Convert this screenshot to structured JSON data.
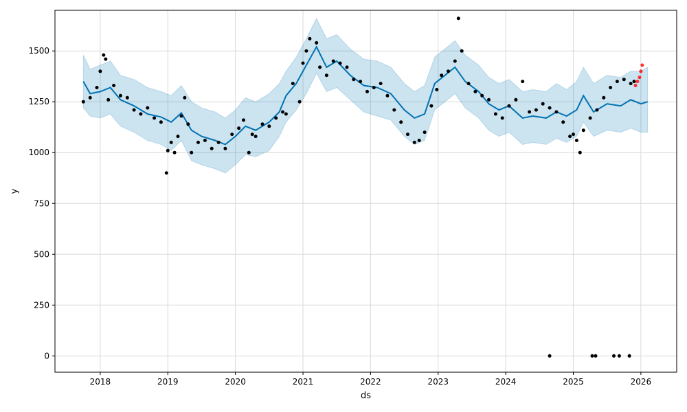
{
  "chart_data": {
    "type": "scatter",
    "title": "",
    "xlabel": "ds",
    "ylabel": "y",
    "xlim": [
      2017.33,
      2026.53
    ],
    "ylim": [
      -80,
      1700
    ],
    "grid": true,
    "x_ticks": [
      {
        "value": 2018,
        "label": "2018"
      },
      {
        "value": 2019,
        "label": "2019"
      },
      {
        "value": 2020,
        "label": "2020"
      },
      {
        "value": 2021,
        "label": "2021"
      },
      {
        "value": 2022,
        "label": "2022"
      },
      {
        "value": 2023,
        "label": "2023"
      },
      {
        "value": 2024,
        "label": "2024"
      },
      {
        "value": 2025,
        "label": "2025"
      },
      {
        "value": 2026,
        "label": "2026"
      }
    ],
    "y_ticks": [
      {
        "value": 0,
        "label": "0"
      },
      {
        "value": 250,
        "label": "250"
      },
      {
        "value": 500,
        "label": "500"
      },
      {
        "value": 750,
        "label": "750"
      },
      {
        "value": 1000,
        "label": "1000"
      },
      {
        "value": 1250,
        "label": "1250"
      },
      {
        "value": 1500,
        "label": "1500"
      }
    ],
    "colors": {
      "observed": "#000000",
      "recent_observed": "#ff0000",
      "forecast_line": "#0072B2",
      "uncertainty_band": "#0072B2"
    },
    "forecast": {
      "x": [
        2017.75,
        2017.85,
        2018.0,
        2018.15,
        2018.3,
        2018.5,
        2018.7,
        2018.9,
        2019.05,
        2019.2,
        2019.35,
        2019.5,
        2019.7,
        2019.85,
        2020.0,
        2020.15,
        2020.3,
        2020.5,
        2020.65,
        2020.75,
        2020.9,
        2021.05,
        2021.2,
        2021.35,
        2021.5,
        2021.7,
        2021.9,
        2022.1,
        2022.3,
        2022.5,
        2022.65,
        2022.8,
        2022.95,
        2023.1,
        2023.25,
        2023.4,
        2023.6,
        2023.75,
        2023.9,
        2024.05,
        2024.25,
        2024.4,
        2024.6,
        2024.75,
        2024.9,
        2025.05,
        2025.15,
        2025.3,
        2025.5,
        2025.7,
        2025.85,
        2026.0,
        2026.1
      ],
      "yhat": [
        1350,
        1290,
        1300,
        1320,
        1260,
        1230,
        1190,
        1175,
        1150,
        1195,
        1110,
        1080,
        1060,
        1040,
        1080,
        1130,
        1110,
        1150,
        1200,
        1280,
        1340,
        1430,
        1520,
        1420,
        1450,
        1380,
        1330,
        1320,
        1290,
        1210,
        1170,
        1190,
        1340,
        1380,
        1420,
        1350,
        1300,
        1240,
        1210,
        1230,
        1170,
        1180,
        1170,
        1200,
        1180,
        1210,
        1280,
        1200,
        1240,
        1230,
        1260,
        1240,
        1250
      ],
      "yhat_lower": [
        1220,
        1180,
        1170,
        1190,
        1130,
        1100,
        1060,
        1040,
        1010,
        1060,
        960,
        940,
        920,
        900,
        940,
        990,
        980,
        1010,
        1080,
        1150,
        1210,
        1290,
        1390,
        1300,
        1320,
        1260,
        1200,
        1180,
        1160,
        1080,
        1040,
        1060,
        1210,
        1250,
        1290,
        1220,
        1170,
        1110,
        1080,
        1100,
        1040,
        1050,
        1040,
        1070,
        1050,
        1080,
        1150,
        1080,
        1110,
        1100,
        1120,
        1100,
        1100
      ],
      "yhat_upper": [
        1480,
        1410,
        1430,
        1450,
        1380,
        1360,
        1320,
        1300,
        1280,
        1330,
        1250,
        1220,
        1200,
        1170,
        1210,
        1270,
        1250,
        1290,
        1340,
        1400,
        1470,
        1560,
        1660,
        1560,
        1580,
        1510,
        1460,
        1450,
        1420,
        1340,
        1300,
        1330,
        1470,
        1510,
        1550,
        1480,
        1430,
        1370,
        1340,
        1360,
        1300,
        1310,
        1300,
        1340,
        1310,
        1350,
        1420,
        1340,
        1380,
        1370,
        1400,
        1400,
        1420
      ]
    },
    "observed": {
      "x": [
        2017.75,
        2017.85,
        2017.95,
        2018.0,
        2018.05,
        2018.08,
        2018.12,
        2018.2,
        2018.3,
        2018.4,
        2018.5,
        2018.6,
        2018.7,
        2018.8,
        2018.9,
        2018.98,
        2019.0,
        2019.05,
        2019.1,
        2019.15,
        2019.2,
        2019.25,
        2019.3,
        2019.35,
        2019.45,
        2019.55,
        2019.65,
        2019.75,
        2019.85,
        2019.95,
        2020.05,
        2020.12,
        2020.2,
        2020.25,
        2020.3,
        2020.4,
        2020.5,
        2020.6,
        2020.7,
        2020.75,
        2020.85,
        2020.95,
        2021.0,
        2021.05,
        2021.1,
        2021.2,
        2021.25,
        2021.35,
        2021.45,
        2021.55,
        2021.65,
        2021.75,
        2021.85,
        2021.95,
        2022.05,
        2022.15,
        2022.25,
        2022.35,
        2022.45,
        2022.55,
        2022.65,
        2022.72,
        2022.8,
        2022.9,
        2022.98,
        2023.05,
        2023.15,
        2023.25,
        2023.3,
        2023.35,
        2023.45,
        2023.55,
        2023.65,
        2023.75,
        2023.85,
        2023.95,
        2024.05,
        2024.15,
        2024.25,
        2024.35,
        2024.45,
        2024.55,
        2024.65,
        2024.75,
        2024.85,
        2024.95,
        2025.0,
        2025.05,
        2025.1,
        2025.15,
        2025.25,
        2025.35,
        2025.45,
        2025.55,
        2025.65,
        2025.75,
        2025.85,
        2025.9,
        2024.65,
        2025.28,
        2025.33,
        2025.6,
        2025.68,
        2025.83
      ],
      "y": [
        1250,
        1270,
        1320,
        1400,
        1480,
        1460,
        1260,
        1330,
        1280,
        1270,
        1210,
        1190,
        1220,
        1170,
        1150,
        900,
        1010,
        1050,
        1000,
        1080,
        1180,
        1270,
        1140,
        1000,
        1050,
        1060,
        1020,
        1050,
        1020,
        1090,
        1120,
        1160,
        1000,
        1090,
        1080,
        1140,
        1130,
        1170,
        1200,
        1190,
        1340,
        1250,
        1440,
        1500,
        1560,
        1540,
        1420,
        1380,
        1450,
        1440,
        1420,
        1360,
        1350,
        1300,
        1320,
        1340,
        1280,
        1210,
        1150,
        1090,
        1050,
        1060,
        1100,
        1230,
        1310,
        1380,
        1400,
        1450,
        1660,
        1500,
        1340,
        1300,
        1280,
        1260,
        1190,
        1170,
        1230,
        1260,
        1350,
        1200,
        1210,
        1240,
        1220,
        1200,
        1150,
        1080,
        1090,
        1060,
        1000,
        1110,
        1170,
        1210,
        1270,
        1320,
        1350,
        1360,
        1340,
        1350,
        0,
        0,
        0,
        0,
        0,
        0
      ]
    },
    "recent_observed": {
      "x": [
        2025.92,
        2025.95,
        2025.98,
        2026.0,
        2026.02
      ],
      "y": [
        1330,
        1350,
        1370,
        1400,
        1430
      ]
    }
  }
}
